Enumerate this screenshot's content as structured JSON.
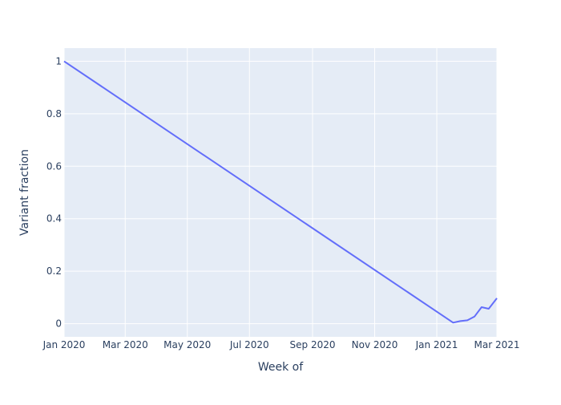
{
  "chart_data": {
    "type": "line",
    "title": "",
    "xlabel": "Week of",
    "ylabel": "Variant fraction",
    "x_tick_labels": [
      "Jan 2020",
      "Mar 2020",
      "May 2020",
      "Jul 2020",
      "Sep 2020",
      "Nov 2020",
      "Jan 2021",
      "Mar 2021"
    ],
    "x_ticks": [
      "2020-01-01",
      "2020-03-01",
      "2020-05-01",
      "2020-07-01",
      "2020-09-01",
      "2020-11-01",
      "2021-01-01",
      "2021-03-01"
    ],
    "y_ticks": [
      0,
      0.2,
      0.4,
      0.6,
      0.8,
      1
    ],
    "y_tick_labels": [
      "0",
      "0.2",
      "0.4",
      "0.6",
      "0.8",
      "1"
    ],
    "xlim": [
      "2020-01-01",
      "2021-03-01"
    ],
    "ylim": [
      -0.05,
      1.05
    ],
    "grid": true,
    "series": [
      {
        "color": "#636efa",
        "x": [
          "2020-01-01",
          "2021-01-17",
          "2021-01-24",
          "2021-01-31",
          "2021-02-07",
          "2021-02-14",
          "2021-02-21",
          "2021-03-01"
        ],
        "values": [
          1.0,
          0.004,
          0.01,
          0.013,
          0.027,
          0.063,
          0.057,
          0.097
        ]
      }
    ],
    "colors": {
      "plot_bg": "#e5ecf6",
      "grid": "#ffffff",
      "text": "#2a3f5f"
    }
  }
}
